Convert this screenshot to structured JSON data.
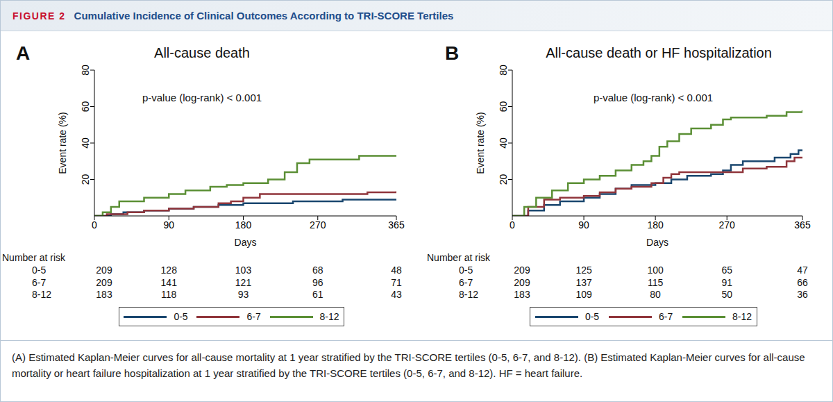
{
  "figure": {
    "label": "FIGURE 2",
    "title": "Cumulative Incidence of Clinical Outcomes According to TRI-SCORE Tertiles"
  },
  "caption": "(A) Estimated Kaplan-Meier curves for all-cause mortality at 1 year stratified by the TRI-SCORE tertiles (0-5, 6-7, and 8-12). (B) Estimated Kaplan-Meier curves for all-cause mortality or heart failure hospitalization at 1 year stratified by the TRI-SCORE tertiles (0-5, 6-7, and 8-12). HF = heart failure.",
  "chart_data": [
    {
      "type": "line",
      "panel": "A",
      "title": "All-cause death",
      "annotation": "p-value (log-rank) < 0.001",
      "x_label": "Days",
      "y_label": "Event rate (%)",
      "xlim": [
        0,
        365
      ],
      "xticks": [
        0,
        90,
        180,
        270,
        365
      ],
      "ylim": [
        0,
        80
      ],
      "yticks": [
        20,
        40,
        60,
        80
      ],
      "grid": false,
      "legend": "bottom",
      "line_style": "step",
      "series": [
        {
          "name": "0-5",
          "color": "#1a476f",
          "x": [
            0,
            20,
            35,
            60,
            90,
            120,
            150,
            180,
            240,
            300,
            365
          ],
          "values": [
            0,
            1,
            2,
            3,
            4,
            5,
            6,
            7,
            8,
            9,
            9
          ]
        },
        {
          "name": "6-7",
          "color": "#90353b",
          "x": [
            0,
            15,
            40,
            60,
            90,
            120,
            150,
            165,
            180,
            200,
            270,
            330,
            365
          ],
          "values": [
            0,
            1,
            2,
            3,
            4,
            5,
            7,
            8,
            10,
            12,
            12,
            13,
            13.5
          ]
        },
        {
          "name": "8-12",
          "color": "#5b8f35",
          "x": [
            0,
            10,
            20,
            30,
            60,
            90,
            110,
            140,
            160,
            180,
            210,
            230,
            245,
            260,
            320,
            365
          ],
          "values": [
            0,
            2,
            5,
            8,
            10,
            12,
            14,
            16,
            17,
            18,
            20,
            24,
            29,
            31,
            33,
            33
          ]
        }
      ],
      "number_at_risk": {
        "title": "Number at risk",
        "x": [
          0,
          90,
          180,
          270,
          365
        ],
        "rows": [
          {
            "name": "0-5",
            "values": [
              209,
              128,
              103,
              68,
              48
            ]
          },
          {
            "name": "6-7",
            "values": [
              209,
              141,
              121,
              96,
              71
            ]
          },
          {
            "name": "8-12",
            "values": [
              183,
              118,
              93,
              61,
              43
            ]
          }
        ]
      }
    },
    {
      "type": "line",
      "panel": "B",
      "title": "All-cause death or HF hospitalization",
      "annotation": "p-value (log-rank) < 0.001",
      "x_label": "Days",
      "y_label": "Event rate (%)",
      "xlim": [
        0,
        365
      ],
      "xticks": [
        0,
        90,
        180,
        270,
        365
      ],
      "ylim": [
        0,
        80
      ],
      "yticks": [
        20,
        40,
        60,
        80
      ],
      "grid": false,
      "legend": "bottom",
      "line_style": "step",
      "series": [
        {
          "name": "0-5",
          "color": "#1a476f",
          "x": [
            0,
            20,
            40,
            60,
            90,
            110,
            130,
            150,
            180,
            200,
            220,
            250,
            265,
            275,
            290,
            330,
            350,
            360,
            365
          ],
          "values": [
            0,
            3,
            6,
            8,
            10,
            12,
            15,
            17,
            18,
            20,
            22,
            23,
            25,
            28,
            30,
            32,
            34,
            36,
            36
          ]
        },
        {
          "name": "6-7",
          "color": "#90353b",
          "x": [
            0,
            20,
            40,
            60,
            90,
            110,
            130,
            150,
            175,
            190,
            200,
            210,
            270,
            290,
            320,
            345,
            355,
            365
          ],
          "values": [
            0,
            5,
            9,
            10,
            11,
            13,
            15,
            16,
            18,
            21,
            23,
            24,
            24,
            26,
            27,
            30,
            32,
            32
          ]
        },
        {
          "name": "8-12",
          "color": "#5b8f35",
          "x": [
            0,
            15,
            30,
            50,
            70,
            90,
            110,
            130,
            150,
            165,
            175,
            185,
            195,
            210,
            225,
            250,
            265,
            275,
            320,
            345,
            365
          ],
          "values": [
            0,
            5,
            10,
            14,
            18,
            20,
            22,
            25,
            28,
            30,
            33,
            38,
            41,
            45,
            48,
            50,
            53,
            54,
            55,
            57,
            58
          ]
        }
      ],
      "number_at_risk": {
        "title": "Number at risk",
        "x": [
          0,
          90,
          180,
          270,
          365
        ],
        "rows": [
          {
            "name": "0-5",
            "values": [
              209,
              125,
              100,
              65,
              47
            ]
          },
          {
            "name": "6-7",
            "values": [
              209,
              137,
              115,
              91,
              66
            ]
          },
          {
            "name": "8-12",
            "values": [
              183,
              109,
              80,
              50,
              36
            ]
          }
        ]
      }
    }
  ]
}
